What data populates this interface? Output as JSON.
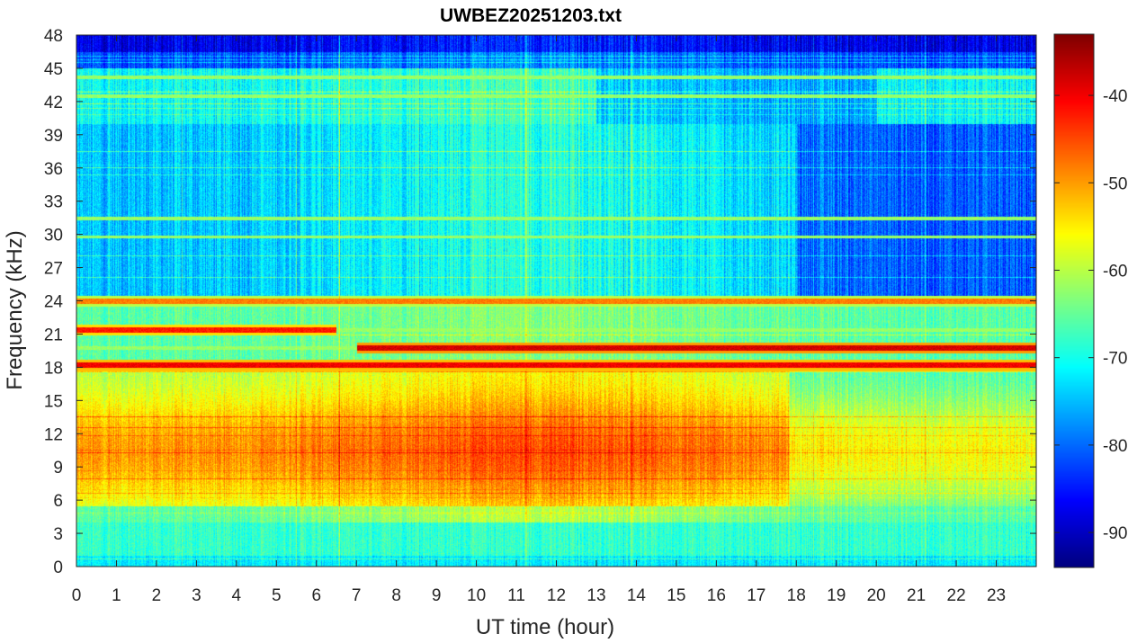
{
  "chart_data": {
    "type": "heatmap",
    "title": "UWBEZ20251203.txt",
    "xlabel": "UT time (hour)",
    "ylabel": "Frequency (kHz)",
    "xlim": [
      0,
      24
    ],
    "ylim": [
      0,
      48
    ],
    "x_ticks": [
      "0",
      "1",
      "2",
      "3",
      "4",
      "5",
      "6",
      "7",
      "8",
      "9",
      "10",
      "11",
      "12",
      "13",
      "14",
      "15",
      "16",
      "17",
      "18",
      "19",
      "20",
      "21",
      "22",
      "23"
    ],
    "y_ticks": [
      "0",
      "3",
      "6",
      "9",
      "12",
      "15",
      "18",
      "21",
      "24",
      "27",
      "30",
      "33",
      "36",
      "39",
      "42",
      "45",
      "48"
    ],
    "colormap": "jet",
    "colorbar": {
      "clim": [
        -94,
        -33
      ],
      "ticks": [
        "-90",
        "-80",
        "-70",
        "-60",
        "-50",
        "-40"
      ]
    },
    "features": {
      "broadband_noise_band_khz": [
        5,
        18
      ],
      "low_band_khz": [
        0,
        4
      ],
      "transmitter_lines_khz": [
        18.2,
        19.8,
        21.4,
        24.0,
        29.8,
        31.5,
        42.5,
        44.2
      ],
      "strong_lines": [
        {
          "freq_khz": 18.2,
          "start_hour": 0,
          "end_hour": 24,
          "level_db": -40
        },
        {
          "freq_khz": 19.8,
          "start_hour": 7,
          "end_hour": 24,
          "level_db": -38
        },
        {
          "freq_khz": 21.4,
          "start_hour": 0,
          "end_hour": 6.5,
          "level_db": -42
        },
        {
          "freq_khz": 24.0,
          "start_hour": 0,
          "end_hour": 24,
          "level_db": -48
        }
      ],
      "background_db": {
        "quiet_upper": -80,
        "noisy_lower": -52
      }
    },
    "grid": false
  }
}
